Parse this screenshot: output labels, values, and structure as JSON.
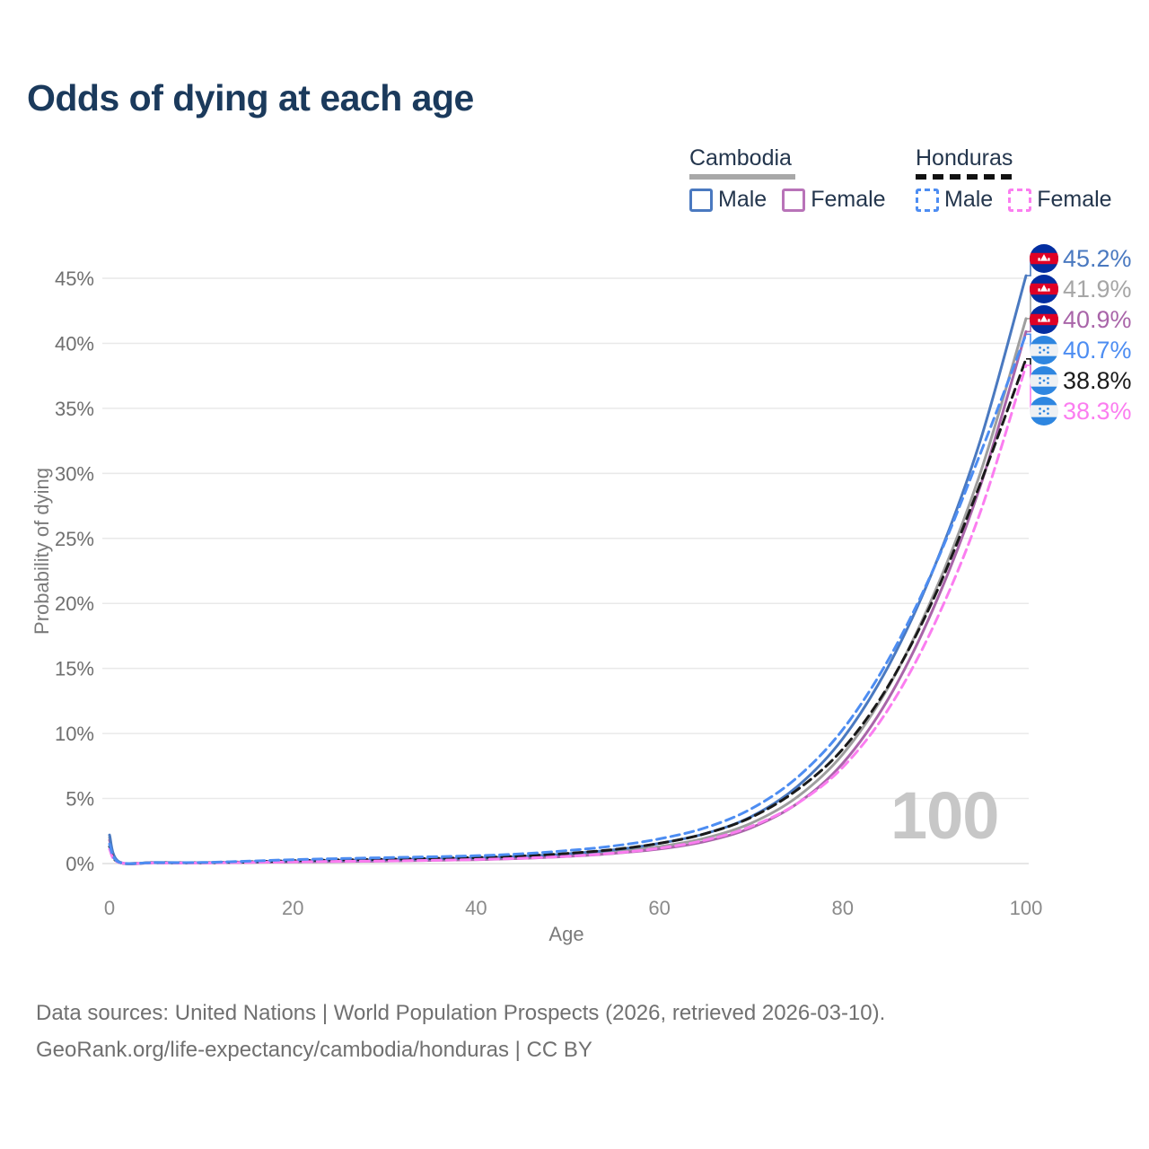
{
  "header": {
    "title": "Odds of dying at each age"
  },
  "legend": {
    "groups": [
      {
        "label": "Cambodia",
        "line_style": "solid",
        "underline_color": "#a8a8a8",
        "items": [
          {
            "label": "Male",
            "color": "#4a79c0",
            "dashed": false
          },
          {
            "label": "Female",
            "color": "#b873b8",
            "dashed": false
          }
        ]
      },
      {
        "label": "Honduras",
        "line_style": "dashed",
        "underline_color": "#111111",
        "items": [
          {
            "label": "Male",
            "color": "#4d8df2",
            "dashed": true
          },
          {
            "label": "Female",
            "color": "#fb7df0",
            "dashed": true
          }
        ]
      }
    ]
  },
  "chart_data": {
    "type": "line",
    "title": "Odds of dying at each age",
    "xlabel": "Age",
    "ylabel": "Probability of dying",
    "xlim": [
      0,
      100
    ],
    "ylim": [
      0,
      45
    ],
    "x_ticks": [
      0,
      20,
      40,
      60,
      80,
      100
    ],
    "y_ticks": [
      0,
      5,
      10,
      15,
      20,
      25,
      30,
      35,
      40,
      45
    ],
    "y_tick_suffix": "%",
    "grid": "horizontal-only",
    "legend_position": "top-right",
    "watermark": "100",
    "x": [
      0,
      1,
      5,
      10,
      15,
      20,
      25,
      30,
      35,
      40,
      45,
      50,
      55,
      60,
      65,
      70,
      75,
      80,
      85,
      90,
      95,
      100
    ],
    "series": [
      {
        "name": "Cambodia Male",
        "country": "cambodia",
        "sex": "male",
        "color": "#4a79c0",
        "dash": null,
        "values": [
          2.2,
          0.15,
          0.08,
          0.07,
          0.12,
          0.2,
          0.25,
          0.3,
          0.35,
          0.42,
          0.55,
          0.75,
          1.05,
          1.55,
          2.3,
          3.6,
          5.9,
          9.6,
          15.2,
          22.8,
          32.5,
          45.2
        ]
      },
      {
        "name": "Cambodia Both sexes",
        "country": "cambodia",
        "sex": "both",
        "color": "#9e9e9e",
        "dash": null,
        "values": [
          2.0,
          0.13,
          0.07,
          0.06,
          0.1,
          0.16,
          0.2,
          0.24,
          0.29,
          0.36,
          0.47,
          0.63,
          0.9,
          1.3,
          1.95,
          3.1,
          5.1,
          8.4,
          13.6,
          20.8,
          30.0,
          41.9
        ]
      },
      {
        "name": "Cambodia Female",
        "country": "cambodia",
        "sex": "female",
        "color": "#a965a9",
        "dash": null,
        "values": [
          1.8,
          0.12,
          0.06,
          0.05,
          0.08,
          0.12,
          0.15,
          0.19,
          0.24,
          0.3,
          0.4,
          0.55,
          0.78,
          1.12,
          1.7,
          2.75,
          4.6,
          7.7,
          12.7,
          19.8,
          29.0,
          40.9
        ]
      },
      {
        "name": "Honduras Male",
        "country": "honduras",
        "sex": "male",
        "color": "#4d8df2",
        "dash": "10 6",
        "values": [
          1.5,
          0.12,
          0.07,
          0.08,
          0.18,
          0.3,
          0.38,
          0.45,
          0.52,
          0.6,
          0.75,
          1.0,
          1.35,
          1.9,
          2.75,
          4.2,
          6.6,
          10.3,
          15.7,
          22.8,
          31.5,
          40.7
        ]
      },
      {
        "name": "Honduras Both sexes",
        "country": "honduras",
        "sex": "both",
        "color": "#1a1a1a",
        "dash": "10 6",
        "values": [
          1.3,
          0.1,
          0.06,
          0.06,
          0.13,
          0.22,
          0.28,
          0.33,
          0.39,
          0.46,
          0.58,
          0.78,
          1.08,
          1.55,
          2.3,
          3.55,
          5.65,
          8.8,
          13.7,
          20.5,
          29.2,
          38.8
        ]
      },
      {
        "name": "Honduras Female",
        "country": "honduras",
        "sex": "female",
        "color": "#fb7df0",
        "dash": "10 6",
        "values": [
          1.1,
          0.09,
          0.05,
          0.05,
          0.09,
          0.13,
          0.17,
          0.2,
          0.25,
          0.31,
          0.41,
          0.56,
          0.8,
          1.18,
          1.8,
          2.85,
          4.6,
          7.4,
          11.9,
          18.4,
          27.0,
          38.3
        ]
      }
    ],
    "end_labels": [
      {
        "value": "45.2%",
        "color": "#4a79c0",
        "flag": "cambodia",
        "series": "Cambodia Male"
      },
      {
        "value": "41.9%",
        "color": "#a6a6a6",
        "flag": "cambodia",
        "series": "Cambodia Both sexes"
      },
      {
        "value": "40.9%",
        "color": "#a965a9",
        "flag": "cambodia",
        "series": "Cambodia Female"
      },
      {
        "value": "40.7%",
        "color": "#4d8df2",
        "flag": "honduras",
        "series": "Honduras Male"
      },
      {
        "value": "38.8%",
        "color": "#1a1a1a",
        "flag": "honduras",
        "series": "Honduras Both sexes"
      },
      {
        "value": "38.3%",
        "color": "#fb7df0",
        "flag": "honduras",
        "series": "Honduras Female"
      }
    ]
  },
  "footer": {
    "line1": "Data sources: United Nations | World Population Prospects (2026, retrieved 2026-03-10).",
    "line2": "GeoRank.org/life-expectancy/cambodia/honduras | CC BY"
  }
}
